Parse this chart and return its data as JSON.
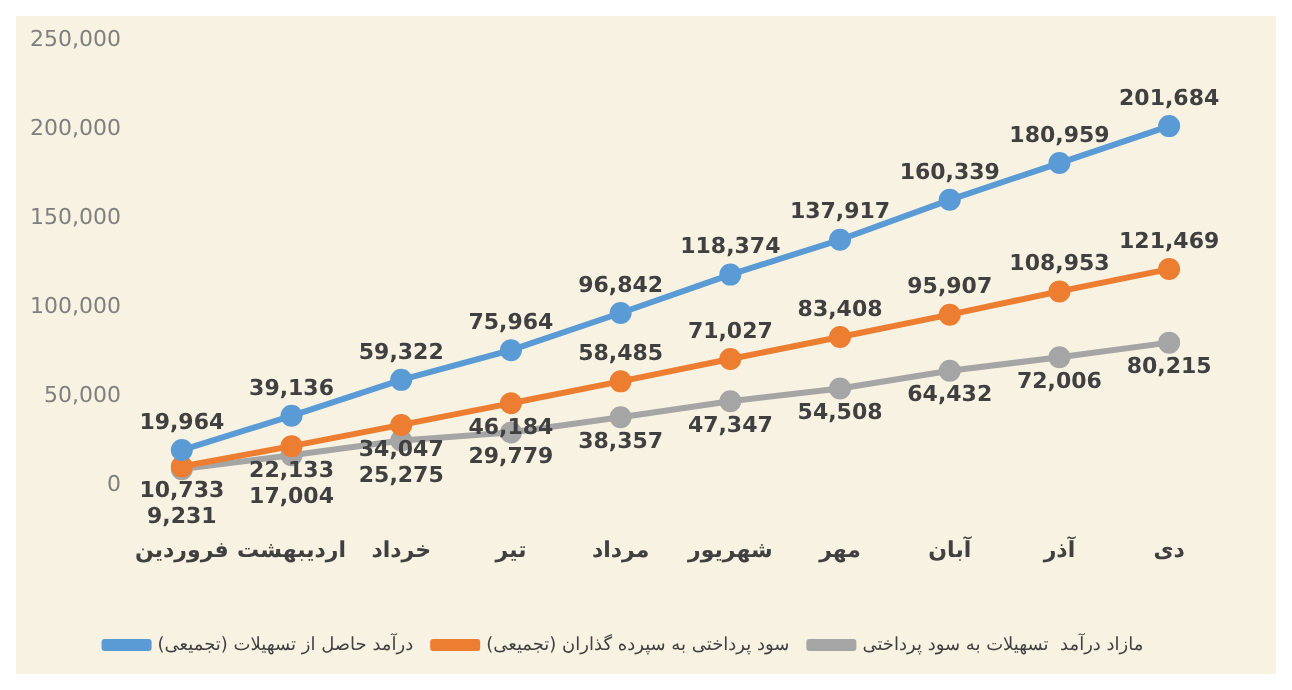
{
  "chart_data": {
    "type": "line",
    "categories": [
      "فروردین",
      "اردیبهشت",
      "خرداد",
      "تیر",
      "مرداد",
      "شهریور",
      "مهر",
      "آبان",
      "آذر",
      "دی"
    ],
    "series": [
      {
        "name": "درآمد حاصل از تسهیلات (تجمیعی)",
        "color": "#5b9bd5",
        "values": [
          19964,
          39136,
          59322,
          75964,
          96842,
          118374,
          137917,
          160339,
          180959,
          201684
        ],
        "value_labels": [
          "19,964",
          "39,136",
          "59,322",
          "75,964",
          "96,842",
          "118,374",
          "137,917",
          "160,339",
          "180,959",
          "201,684"
        ]
      },
      {
        "name": "سود پرداختی به سپرده گذاران (تجمیعی)",
        "color": "#ed7d31",
        "values": [
          10733,
          22133,
          34047,
          46184,
          58485,
          71027,
          83408,
          95907,
          108953,
          121469
        ],
        "value_labels": [
          "10,733",
          "22,133",
          "34,047",
          "46,184",
          "58,485",
          "71,027",
          "83,408",
          "95,907",
          "108,953",
          "121,469"
        ]
      },
      {
        "name": "مازاد درآمد  تسهیلات به سود پرداختی",
        "color": "#a5a5a5",
        "values": [
          9231,
          17004,
          25275,
          29779,
          38357,
          47347,
          54508,
          64432,
          72006,
          80215
        ],
        "value_labels": [
          "9,231",
          "17,004",
          "25,275",
          "29,779",
          "38,357",
          "47,347",
          "54,508",
          "64,432",
          "72,006",
          "80,215"
        ]
      }
    ],
    "ylim": [
      0,
      250000
    ],
    "yticks": [
      0,
      {
        "value": 50000,
        "label": "50,000"
      },
      {
        "value": 100000,
        "label": "100,000"
      },
      {
        "value": 150000,
        "label": "150,000"
      },
      {
        "value": 200000,
        "label": "200,000"
      },
      {
        "value": 250000,
        "label": "250,000"
      }
    ],
    "grid": false,
    "legend": "bottom",
    "marker": "circle",
    "line_style": "solid"
  }
}
